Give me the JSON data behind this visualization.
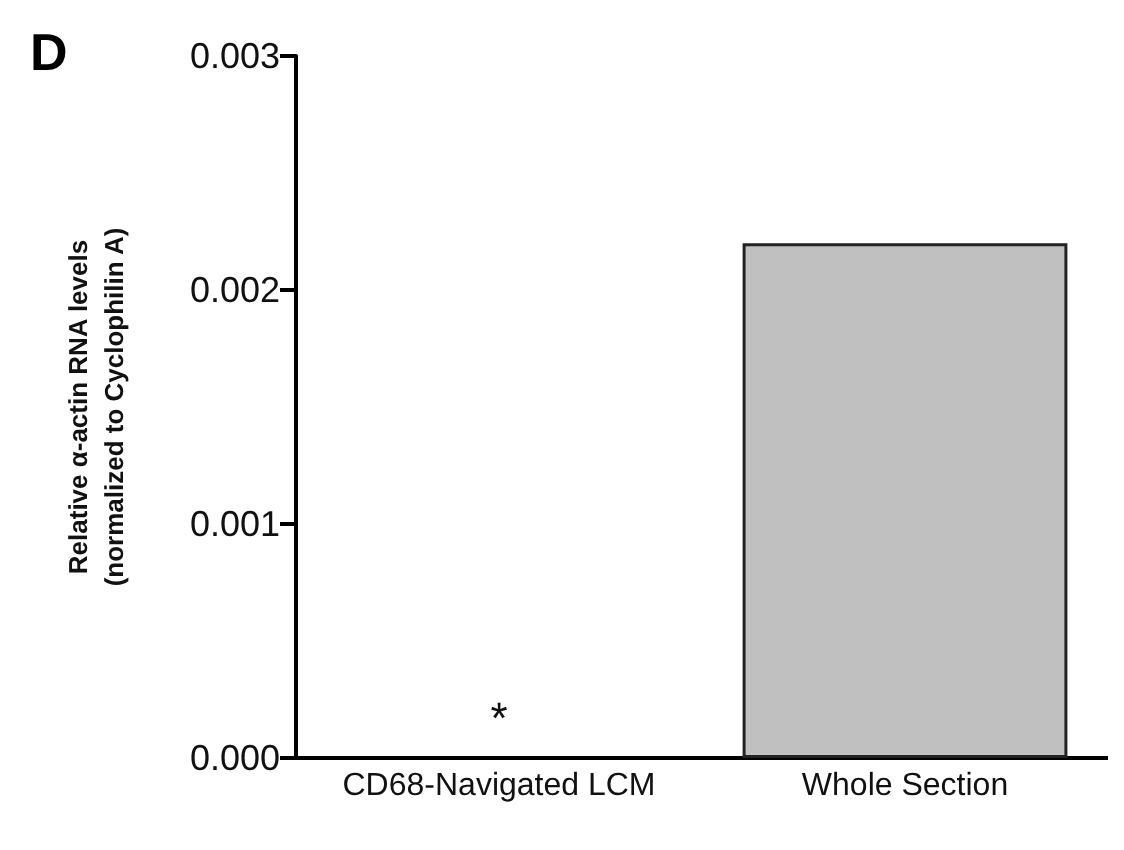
{
  "chart_data": {
    "type": "bar",
    "title": "D",
    "ylabel": "Relative α-actin RNA levels\n(normalized to Cyclophilin A)",
    "categories": [
      "CD68-Navigated LCM",
      "Whole Section"
    ],
    "values": [
      0,
      0.0022
    ],
    "color": "#c0c0c0",
    "ylim": [
      0,
      0.003
    ],
    "yticks": [
      {
        "value": 0,
        "label": "0.000"
      },
      {
        "value": 0.001,
        "label": "0.001"
      },
      {
        "value": 0.002,
        "label": "0.002"
      },
      {
        "value": 0.003,
        "label": "0.003"
      }
    ],
    "annotations": [
      "*"
    ],
    "grid": false
  }
}
